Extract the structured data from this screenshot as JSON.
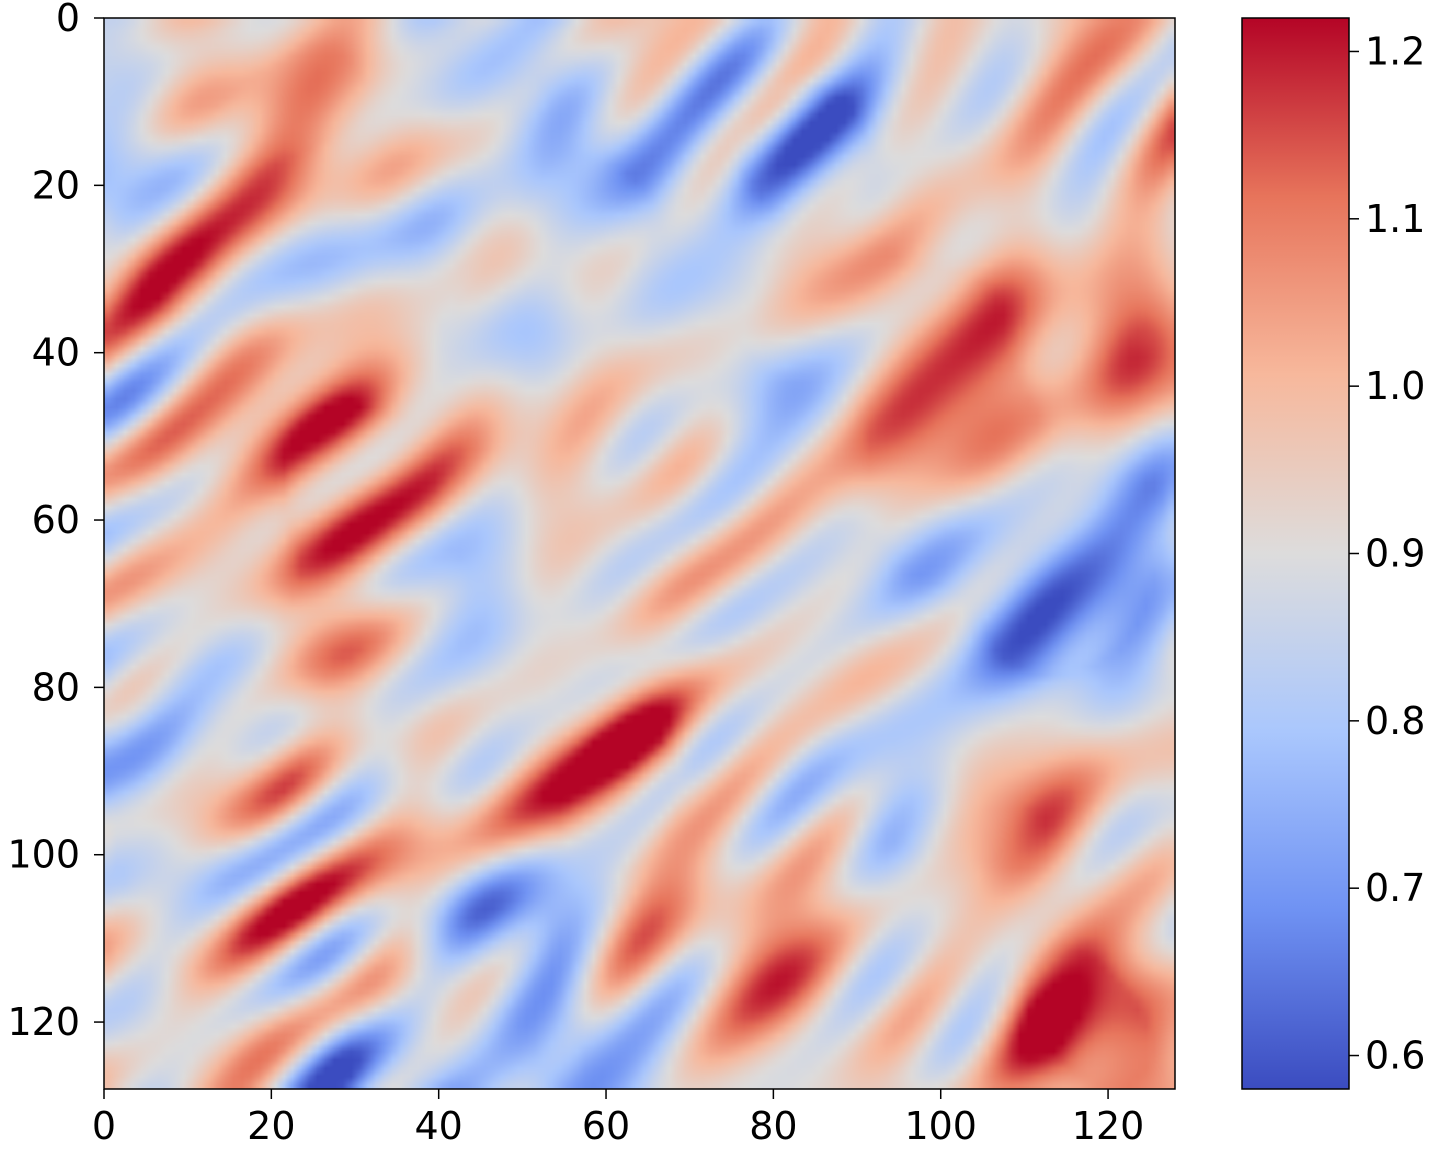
{
  "chart_data": {
    "type": "heatmap",
    "title": "",
    "xlabel": "",
    "ylabel": "",
    "grid_size": [
      128,
      128
    ],
    "xlim": [
      0,
      128
    ],
    "ylim": [
      128,
      0
    ],
    "x_ticks": [
      0,
      20,
      40,
      60,
      80,
      100,
      120
    ],
    "y_ticks": [
      0,
      20,
      40,
      60,
      80,
      100,
      120
    ],
    "colormap": "coolwarm",
    "colormap_stops": [
      "#3b4cc0",
      "#6f92f3",
      "#aac7fd",
      "#dddcdc",
      "#f7b89c",
      "#e7745b",
      "#b40426"
    ],
    "value_range": [
      0.58,
      1.22
    ],
    "colorbar": {
      "ticks": [
        0.6,
        0.7,
        0.8,
        0.9,
        1.0,
        1.1,
        1.2
      ],
      "tick_labels": [
        "0.6",
        "0.7",
        "0.8",
        "0.9",
        "1.0",
        "1.1",
        "1.2"
      ]
    },
    "field_features": [
      {
        "x": 9,
        "y": 33,
        "value": 1.11
      },
      {
        "x": 17,
        "y": 13,
        "value": 1.06
      },
      {
        "x": 27,
        "y": 7,
        "value": 1.04
      },
      {
        "x": 28,
        "y": 52,
        "value": 1.11
      },
      {
        "x": 29,
        "y": 57,
        "value": 1.12
      },
      {
        "x": 26,
        "y": 72,
        "value": 1.1
      },
      {
        "x": 15,
        "y": 89,
        "value": 1.16
      },
      {
        "x": 46,
        "y": 47,
        "value": 1.06
      },
      {
        "x": 55,
        "y": 28,
        "value": 1.05
      },
      {
        "x": 63,
        "y": 89,
        "value": 1.1
      },
      {
        "x": 60,
        "y": 97,
        "value": 1.05
      },
      {
        "x": 81,
        "y": 115,
        "value": 1.09
      },
      {
        "x": 89,
        "y": 34,
        "value": 1.12
      },
      {
        "x": 97,
        "y": 50,
        "value": 1.07
      },
      {
        "x": 106,
        "y": 50,
        "value": 1.09
      },
      {
        "x": 103,
        "y": 34,
        "value": 1.08
      },
      {
        "x": 124,
        "y": 38,
        "value": 1.15
      },
      {
        "x": 122,
        "y": 2,
        "value": 1.06
      },
      {
        "x": 110,
        "y": 97,
        "value": 1.09
      },
      {
        "x": 114,
        "y": 115,
        "value": 1.12
      },
      {
        "x": 121,
        "y": 124,
        "value": 1.14
      },
      {
        "x": 12,
        "y": 110,
        "value": 1.03
      },
      {
        "x": 36,
        "y": 114,
        "value": 1.05
      },
      {
        "x": 50,
        "y": 8,
        "value": 0.74
      },
      {
        "x": 45,
        "y": 35,
        "value": 0.72
      },
      {
        "x": 60,
        "y": 23,
        "value": 0.7
      },
      {
        "x": 81,
        "y": 13,
        "value": 0.72
      },
      {
        "x": 80,
        "y": 38,
        "value": 0.75
      },
      {
        "x": 86,
        "y": 18,
        "value": 0.8
      },
      {
        "x": 118,
        "y": 70,
        "value": 0.64
      },
      {
        "x": 110,
        "y": 72,
        "value": 0.74
      },
      {
        "x": 123,
        "y": 58,
        "value": 0.76
      },
      {
        "x": 49,
        "y": 110,
        "value": 0.72
      },
      {
        "x": 32,
        "y": 126,
        "value": 0.68
      },
      {
        "x": 55,
        "y": 125,
        "value": 0.71
      },
      {
        "x": 16,
        "y": 83,
        "value": 0.74
      },
      {
        "x": 4,
        "y": 86,
        "value": 0.78
      },
      {
        "x": 6,
        "y": 100,
        "value": 0.76
      },
      {
        "x": 41,
        "y": 68,
        "value": 0.76
      },
      {
        "x": 3,
        "y": 19,
        "value": 0.77
      },
      {
        "x": 95,
        "y": 96,
        "value": 0.77
      },
      {
        "x": 97,
        "y": 62,
        "value": 0.79
      }
    ]
  }
}
